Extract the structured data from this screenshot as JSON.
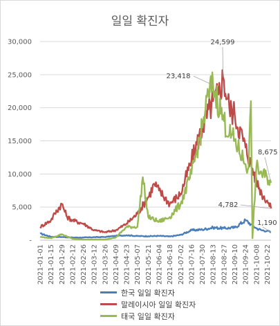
{
  "chart_data": {
    "type": "line",
    "title": "일일 확진자",
    "xlabel": "",
    "ylabel": "",
    "ylim": [
      0,
      30000
    ],
    "yticks": [
      "-",
      "5,000",
      "10,000",
      "15,000",
      "20,000",
      "25,000",
      "30,000"
    ],
    "grid": true,
    "legend_position": "bottom",
    "x_start": "2021-01-01",
    "x_end": "2021-10-27",
    "xtick_labels": [
      "2021-01-01",
      "2021-01-15",
      "2021-01-29",
      "2021-02-12",
      "2021-02-26",
      "2021-03-12",
      "2021-03-26",
      "2021-04-09",
      "2021-04-23",
      "2021-05-07",
      "2021-05-21",
      "2021-06-04",
      "2021-06-18",
      "2021-07-02",
      "2021-07-16",
      "2021-07-30",
      "2021-08-13",
      "2021-08-27",
      "2021-09-10",
      "2021-09-24",
      "2021-10-08",
      "2021-10-22"
    ],
    "series": [
      {
        "name": "한국 일일 확진자",
        "color": "#4a7ebb",
        "points": [
          [
            "2021-01-01",
            1000
          ],
          [
            "2021-01-15",
            520
          ],
          [
            "2021-01-29",
            480
          ],
          [
            "2021-02-12",
            400
          ],
          [
            "2021-02-26",
            400
          ],
          [
            "2021-03-12",
            450
          ],
          [
            "2021-03-26",
            480
          ],
          [
            "2021-04-09",
            650
          ],
          [
            "2021-04-23",
            750
          ],
          [
            "2021-05-07",
            620
          ],
          [
            "2021-05-21",
            600
          ],
          [
            "2021-06-04",
            650
          ],
          [
            "2021-06-18",
            550
          ],
          [
            "2021-07-02",
            800
          ],
          [
            "2021-07-16",
            1500
          ],
          [
            "2021-07-30",
            1600
          ],
          [
            "2021-08-13",
            1900
          ],
          [
            "2021-08-27",
            1800
          ],
          [
            "2021-09-10",
            1900
          ],
          [
            "2021-09-24",
            3000
          ],
          [
            "2021-10-01",
            2400
          ],
          [
            "2021-10-08",
            1800
          ],
          [
            "2021-10-15",
            1500
          ],
          [
            "2021-10-22",
            1400
          ],
          [
            "2021-10-27",
            1190
          ]
        ]
      },
      {
        "name": "말레이시아 일일 확진자",
        "color": "#be4b48",
        "points": [
          [
            "2021-01-01",
            2000
          ],
          [
            "2021-01-15",
            3000
          ],
          [
            "2021-01-20",
            4000
          ],
          [
            "2021-01-29",
            5500
          ],
          [
            "2021-02-05",
            3500
          ],
          [
            "2021-02-12",
            3000
          ],
          [
            "2021-02-26",
            2500
          ],
          [
            "2021-03-12",
            1500
          ],
          [
            "2021-03-26",
            1200
          ],
          [
            "2021-04-09",
            1500
          ],
          [
            "2021-04-23",
            2500
          ],
          [
            "2021-05-07",
            4000
          ],
          [
            "2021-05-21",
            6500
          ],
          [
            "2021-05-29",
            8500
          ],
          [
            "2021-06-04",
            7500
          ],
          [
            "2021-06-18",
            5500
          ],
          [
            "2021-07-02",
            7000
          ],
          [
            "2021-07-16",
            12000
          ],
          [
            "2021-07-30",
            17000
          ],
          [
            "2021-08-13",
            21000
          ],
          [
            "2021-08-20",
            22000
          ],
          [
            "2021-08-26",
            24599
          ],
          [
            "2021-09-03",
            20000
          ],
          [
            "2021-09-10",
            19000
          ],
          [
            "2021-09-24",
            14000
          ],
          [
            "2021-10-08",
            9000
          ],
          [
            "2021-10-15",
            7000
          ],
          [
            "2021-10-22",
            6000
          ],
          [
            "2021-10-27",
            4782
          ]
        ]
      },
      {
        "name": "태국 일일 확진자",
        "color": "#98b954",
        "points": [
          [
            "2021-01-01",
            500
          ],
          [
            "2021-01-15",
            300
          ],
          [
            "2021-01-29",
            900
          ],
          [
            "2021-02-12",
            200
          ],
          [
            "2021-02-26",
            100
          ],
          [
            "2021-03-12",
            100
          ],
          [
            "2021-03-26",
            100
          ],
          [
            "2021-04-09",
            400
          ],
          [
            "2021-04-23",
            2000
          ],
          [
            "2021-05-07",
            2000
          ],
          [
            "2021-05-14",
            9500
          ],
          [
            "2021-05-21",
            3500
          ],
          [
            "2021-06-04",
            2800
          ],
          [
            "2021-06-18",
            3500
          ],
          [
            "2021-07-02",
            5500
          ],
          [
            "2021-07-16",
            10000
          ],
          [
            "2021-07-30",
            17000
          ],
          [
            "2021-08-07",
            22000
          ],
          [
            "2021-08-13",
            23418
          ],
          [
            "2021-08-27",
            18000
          ],
          [
            "2021-09-03",
            16000
          ],
          [
            "2021-09-10",
            15000
          ],
          [
            "2021-09-24",
            11500
          ],
          [
            "2021-09-28",
            11000
          ],
          [
            "2021-10-01",
            21000
          ],
          [
            "2021-10-03",
            300
          ],
          [
            "2021-10-08",
            11000
          ],
          [
            "2021-10-15",
            10000
          ],
          [
            "2021-10-22",
            9500
          ],
          [
            "2021-10-27",
            8675
          ]
        ]
      }
    ],
    "annotations": [
      {
        "date": "2021-08-26",
        "value": 24599,
        "label": "24,599"
      },
      {
        "date": "2021-08-13",
        "value": 23418,
        "label": "23,418"
      },
      {
        "date": "2021-10-27",
        "value": 8675,
        "label": "8,675"
      },
      {
        "date": "2021-10-27",
        "value": 4782,
        "label": "4,782"
      },
      {
        "date": "2021-10-27",
        "value": 1190,
        "label": "1,190"
      }
    ]
  }
}
